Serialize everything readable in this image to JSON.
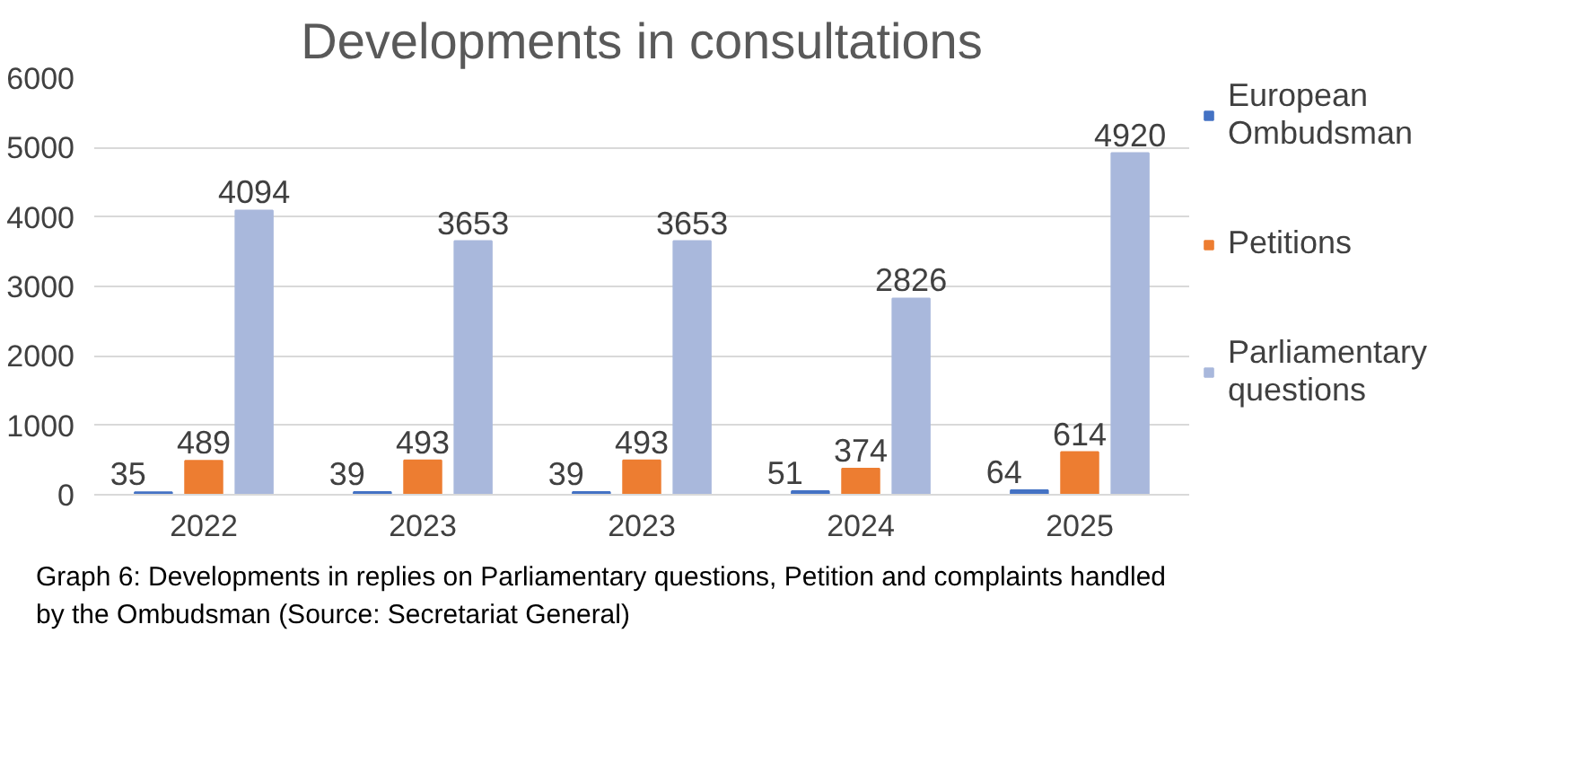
{
  "chart_data": {
    "type": "bar",
    "title": "Developments in consultations",
    "categories": [
      "2022",
      "2023",
      "2023",
      "2024",
      "2025"
    ],
    "series": [
      {
        "name": "European Ombudsman",
        "color": "#4472c4",
        "values": [
          35,
          39,
          39,
          51,
          64
        ]
      },
      {
        "name": "Petitions",
        "color": "#ed7d31",
        "values": [
          489,
          493,
          493,
          374,
          614
        ]
      },
      {
        "name": "Parliamentary questions",
        "color": "#a9b8dc",
        "values": [
          4094,
          3653,
          3653,
          2826,
          4920
        ]
      }
    ],
    "ylim": [
      0,
      6000
    ],
    "yticks": [
      0,
      1000,
      2000,
      3000,
      4000,
      5000,
      6000
    ],
    "grid": "y",
    "legend": "right",
    "data_labels": true,
    "annotations": [
      "Graph 6: Developments in replies on Parliamentary questions, Petition and complaints handled by the Ombudsman (Source: Secretariat General)"
    ]
  }
}
